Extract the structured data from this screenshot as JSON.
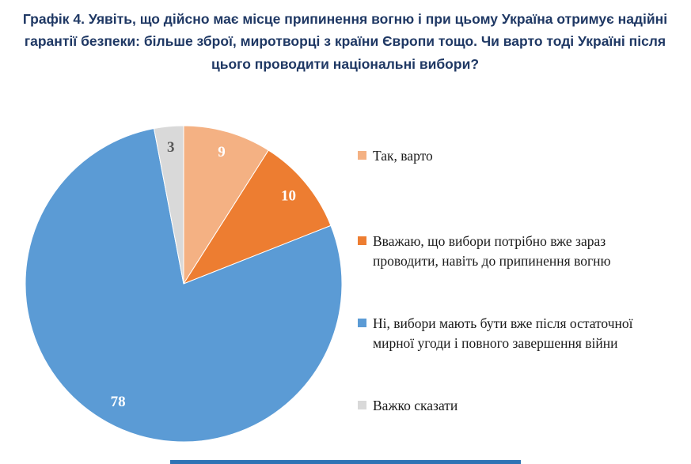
{
  "title": "Графік 4. Уявіть, що дійсно має місце припинення вогню і при цьому Україна отримує надійні гарантії безпеки: більше зброї, миротворці з країни Європи тощо. Чи варто тоді Україні після цього проводити національні вибори?",
  "title_color": "#1F3864",
  "footer_rule_color": "#2E74B5",
  "chart_data": {
    "type": "pie",
    "title": "Графік 4. Уявіть, що дійсно має місце припинення вогню і при цьому Україна отримує надійні гарантії безпеки: більше зброї, миротворці з країни Європи тощо. Чи варто тоді Україні після цього проводити національні вибори?",
    "legend_position": "right",
    "start_angle_deg": 0,
    "direction": "clockwise",
    "units": "percent",
    "slices": [
      {
        "label": "Так, варто",
        "value": 9,
        "color": "#F4B183",
        "value_label_color": "#FFFFFF"
      },
      {
        "label": "Вважаю, що вибори потрібно вже зараз проводити, навіть до припинення вогню",
        "value": 10,
        "color": "#ED7D31",
        "value_label_color": "#FFFFFF"
      },
      {
        "label": "Ні, вибори мають бути вже після остаточної мирної угоди і повного завершення війни",
        "value": 78,
        "color": "#5B9BD5",
        "value_label_color": "#FFFFFF"
      },
      {
        "label": "Важко сказати",
        "value": 3,
        "color": "#D9D9D9",
        "value_label_color": "#595959"
      }
    ]
  }
}
